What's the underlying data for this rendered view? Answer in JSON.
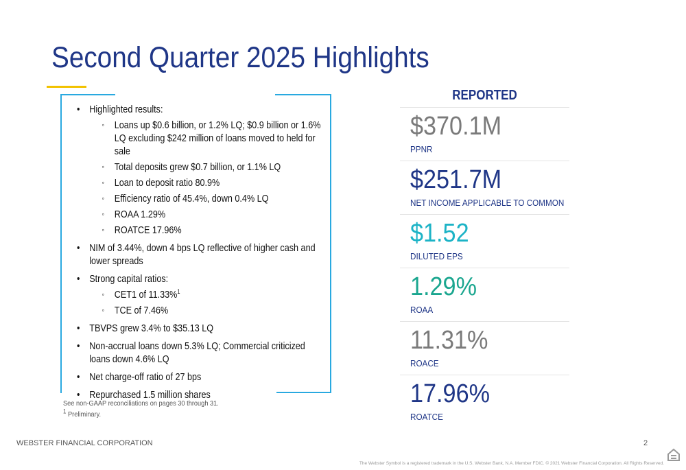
{
  "title": "Second Quarter 2025 Highlights",
  "highlights": [
    {
      "text": "Highlighted results:",
      "sub": [
        {
          "text": "Loans up $0.6 billion, or 1.2% LQ; $0.9 billion or 1.6% LQ excluding $242 million of loans moved to held for sale"
        },
        {
          "text": "Total deposits grew $0.7 billion, or 1.1% LQ"
        },
        {
          "text": "Loan to deposit ratio 80.9%"
        },
        {
          "text": "Efficiency ratio of 45.4%, down 0.4% LQ"
        },
        {
          "text": "ROAA 1.29%"
        },
        {
          "text": "ROATCE 17.96%"
        }
      ]
    },
    {
      "text": "NIM of 3.44%, down 4 bps LQ reflective of higher cash and lower spreads"
    },
    {
      "text": "Strong capital ratios:",
      "sub": [
        {
          "text": "CET1 of 11.33%",
          "sup": "1"
        },
        {
          "text": "TCE of 7.46%"
        }
      ]
    },
    {
      "text": "TBVPS grew 3.4% to $35.13 LQ"
    },
    {
      "text": "Non-accrual loans down 5.3% LQ; Commercial criticized loans down 4.6% LQ"
    },
    {
      "text": "Net charge-off ratio of 27 bps"
    },
    {
      "text": "Repurchased 1.5 million shares"
    }
  ],
  "footnotes": [
    {
      "text": "See non-GAAP reconciliations on pages 30 through 31."
    },
    {
      "sup": "1",
      "text": "Preliminary."
    }
  ],
  "reported": {
    "heading": "REPORTED",
    "metrics": [
      {
        "value": "$370.1M",
        "label": "PPNR"
      },
      {
        "value": "$251.7M",
        "label": "NET INCOME APPLICABLE TO COMMON"
      },
      {
        "value": "$1.52",
        "label": "DILUTED EPS"
      },
      {
        "value": "1.29%",
        "label": "ROAA"
      },
      {
        "value": "11.31%",
        "label": "ROACE"
      },
      {
        "value": "17.96%",
        "label": "ROATCE"
      }
    ]
  },
  "footer": {
    "company": "WEBSTER FINANCIAL CORPORATION",
    "page": "2",
    "trademark": "The Webster Symbol is a registered trademark in the U.S. Webster Bank, N.A. Member FDIC. © 2021 Webster Financial Corporation. All Rights Reserved."
  }
}
